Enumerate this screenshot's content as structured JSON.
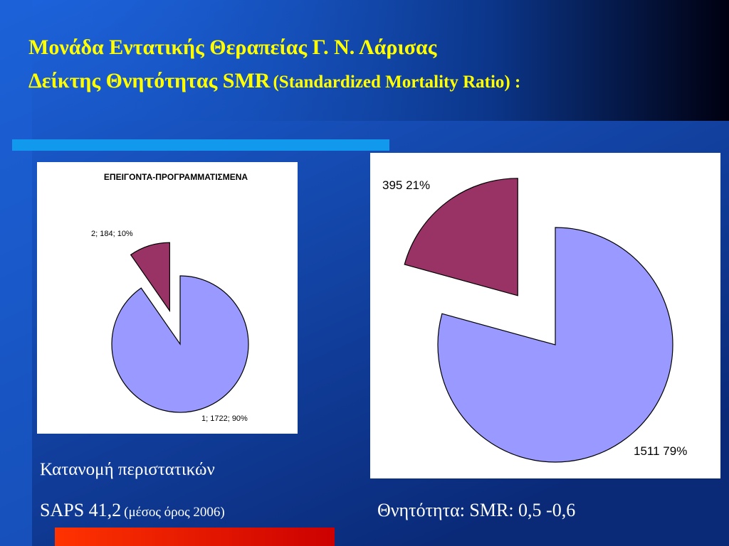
{
  "slide": {
    "title_line1": "Μονάδα Εντατικής Θεραπείας  Γ. Ν.   Λάρισας",
    "title_line2": "Δείκτης Θνητότητας SMR",
    "title_line2_note": "(Standardized Mortality Ratio) :",
    "caption_distribution": "Κατανομή περιστατικών",
    "caption_saps": "SAPS 41,2",
    "caption_saps_note": "(μέσος όρος 2006)",
    "caption_mortality": "Θνητότητα: SMR: 0,5 -0,6"
  },
  "chart_data": [
    {
      "type": "pie",
      "title": "ΕΠΕΙΓΟΝΤΑ-ΠΡΟΓΡΑΜΜΑΤΙΣΜΕΝΑ",
      "categories": [
        "1",
        "2"
      ],
      "values": [
        1722,
        184
      ],
      "value_labels": [
        "1; 1722; 90%",
        "2; 184; 10%"
      ],
      "colors": [
        "#9999ff",
        "#993366"
      ]
    },
    {
      "type": "pie",
      "values": [
        1511,
        395
      ],
      "value_labels": [
        "1511 79%",
        "395 21%"
      ],
      "colors": [
        "#9999ff",
        "#993366"
      ]
    }
  ]
}
